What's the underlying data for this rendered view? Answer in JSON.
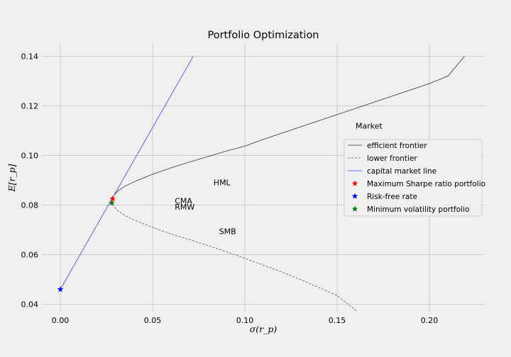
{
  "chart_data": {
    "type": "line",
    "title": "Portfolio Optimization",
    "xlabel": "σ(r_p)",
    "ylabel": "E[r_p]",
    "xlim": [
      -0.01,
      0.23
    ],
    "ylim": [
      0.037,
      0.145
    ],
    "xticks": [
      0.0,
      0.05,
      0.1,
      0.15,
      0.2
    ],
    "xtick_labels": [
      "0.00",
      "0.05",
      "0.10",
      "0.15",
      "0.20"
    ],
    "yticks": [
      0.04,
      0.06,
      0.08,
      0.1,
      0.12,
      0.14
    ],
    "ytick_labels": [
      "0.04",
      "0.06",
      "0.08",
      "0.10",
      "0.12",
      "0.14"
    ],
    "grid": true,
    "legend_position": "right",
    "series": [
      {
        "name": "efficient frontier",
        "kind": "line",
        "style": "solid",
        "color": "#333333",
        "x": [
          0.0281,
          0.0289,
          0.0313,
          0.0355,
          0.0412,
          0.0478,
          0.0552,
          0.0632,
          0.072,
          0.081,
          0.09,
          0.1,
          0.11,
          0.12,
          0.13,
          0.14,
          0.15,
          0.16,
          0.17,
          0.18,
          0.19,
          0.2,
          0.21,
          0.219
        ],
        "y": [
          0.0817,
          0.0838,
          0.0858,
          0.0878,
          0.0898,
          0.0918,
          0.0938,
          0.0958,
          0.0978,
          0.0998,
          0.1018,
          0.1038,
          0.1065,
          0.109,
          0.1115,
          0.114,
          0.1165,
          0.119,
          0.1215,
          0.124,
          0.1265,
          0.129,
          0.132,
          0.14
        ]
      },
      {
        "name": "lower frontier",
        "kind": "line",
        "style": "dashed",
        "color": "#555555",
        "x": [
          0.0281,
          0.0289,
          0.0313,
          0.0355,
          0.0412,
          0.0478,
          0.0552,
          0.0632,
          0.072,
          0.081,
          0.09,
          0.1,
          0.11,
          0.12,
          0.13,
          0.14,
          0.15,
          0.161
        ],
        "y": [
          0.0817,
          0.0796,
          0.0776,
          0.0756,
          0.0736,
          0.0716,
          0.0696,
          0.0676,
          0.0656,
          0.0634,
          0.0612,
          0.0585,
          0.0558,
          0.053,
          0.05,
          0.0468,
          0.0435,
          0.037
        ]
      },
      {
        "name": "capital market line",
        "kind": "line",
        "style": "solid",
        "color": "#4040ff",
        "x": [
          0.0,
          0.072
        ],
        "y": [
          0.046,
          0.14
        ]
      },
      {
        "name": "Maximum Sharpe ratio portfolio",
        "kind": "marker",
        "color": "#ff0000",
        "x": [
          0.0283
        ],
        "y": [
          0.0825
        ]
      },
      {
        "name": "Risk-free rate",
        "kind": "marker",
        "color": "#0000ff",
        "x": [
          0.0
        ],
        "y": [
          0.046
        ]
      },
      {
        "name": "Minimum volatility portfolio",
        "kind": "marker",
        "color": "#008000",
        "x": [
          0.0279
        ],
        "y": [
          0.0808
        ]
      }
    ],
    "annotations": [
      {
        "text": "Market",
        "x": 0.16,
        "y": 0.1108
      },
      {
        "text": "HML",
        "x": 0.083,
        "y": 0.088
      },
      {
        "text": "CMA",
        "x": 0.062,
        "y": 0.0806
      },
      {
        "text": "RMW",
        "x": 0.062,
        "y": 0.0782
      },
      {
        "text": "SMB",
        "x": 0.086,
        "y": 0.0683
      }
    ]
  }
}
